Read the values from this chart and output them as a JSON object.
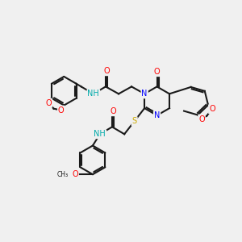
{
  "background_color": "#f0f0f0",
  "bond_color": "#1a1a1a",
  "atom_colors": {
    "N": "#0000ff",
    "O": "#ff0000",
    "S": "#ccaa00",
    "C": "#1a1a1a",
    "H": "#1a1a1a",
    "NH": "#00aaaa"
  },
  "figsize": [
    3.0,
    3.0
  ],
  "dpi": 100
}
